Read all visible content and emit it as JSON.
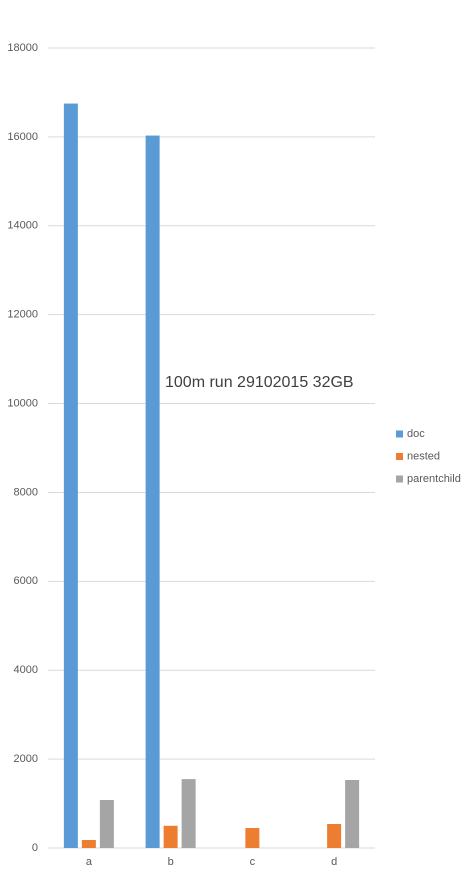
{
  "chart_data": {
    "type": "bar",
    "title": "100m run 29102015 32GB",
    "categories": [
      "a",
      "b",
      "c",
      "d"
    ],
    "series": [
      {
        "name": "doc",
        "color": "#5b9bd5",
        "values": [
          16750,
          16030,
          null,
          null
        ]
      },
      {
        "name": "nested",
        "color": "#ed7d31",
        "values": [
          180,
          500,
          450,
          540
        ]
      },
      {
        "name": "parentchild",
        "color": "#a5a5a5",
        "values": [
          1080,
          1550,
          null,
          1530
        ]
      }
    ],
    "ylim": [
      0,
      18000
    ],
    "yticks": [
      0,
      2000,
      4000,
      6000,
      8000,
      10000,
      12000,
      14000,
      16000,
      18000
    ],
    "grid": true,
    "legend": "right"
  }
}
